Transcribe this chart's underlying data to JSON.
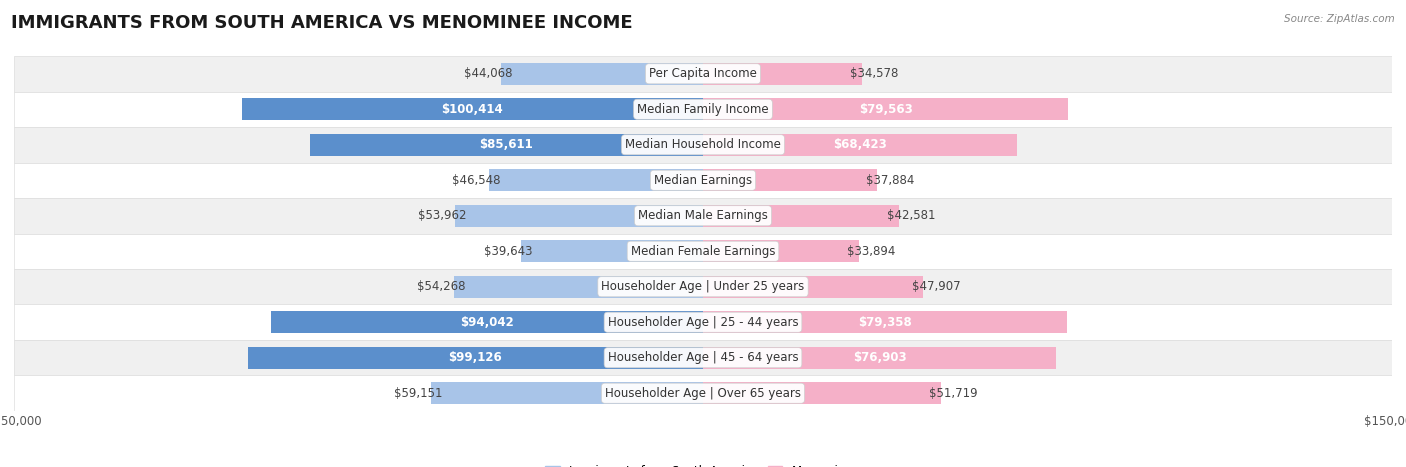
{
  "title": "IMMIGRANTS FROM SOUTH AMERICA VS MENOMINEE INCOME",
  "source": "Source: ZipAtlas.com",
  "categories": [
    "Per Capita Income",
    "Median Family Income",
    "Median Household Income",
    "Median Earnings",
    "Median Male Earnings",
    "Median Female Earnings",
    "Householder Age | Under 25 years",
    "Householder Age | 25 - 44 years",
    "Householder Age | 45 - 64 years",
    "Householder Age | Over 65 years"
  ],
  "left_values": [
    44068,
    100414,
    85611,
    46548,
    53962,
    39643,
    54268,
    94042,
    99126,
    59151
  ],
  "right_values": [
    34578,
    79563,
    68423,
    37884,
    42581,
    33894,
    47907,
    79358,
    76903,
    51719
  ],
  "left_labels": [
    "$44,068",
    "$100,414",
    "$85,611",
    "$46,548",
    "$53,962",
    "$39,643",
    "$54,268",
    "$94,042",
    "$99,126",
    "$59,151"
  ],
  "right_labels": [
    "$34,578",
    "$79,563",
    "$68,423",
    "$37,884",
    "$42,581",
    "$33,894",
    "$47,907",
    "$79,358",
    "$76,903",
    "$51,719"
  ],
  "left_color_light": "#a8c4e8",
  "left_color_dark": "#5b8fcc",
  "right_color_light": "#f5b0c8",
  "right_color_dark": "#e8607a",
  "row_bg_odd": "#f0f0f0",
  "row_bg_even": "#ffffff",
  "row_border": "#dddddd",
  "max_value": 150000,
  "legend_left": "Immigrants from South America",
  "legend_right": "Menominee",
  "background_color": "#ffffff",
  "title_fontsize": 13,
  "label_fontsize": 8.5,
  "category_fontsize": 8.5,
  "inside_label_threshold": 65000,
  "dark_bar_threshold": 80000
}
